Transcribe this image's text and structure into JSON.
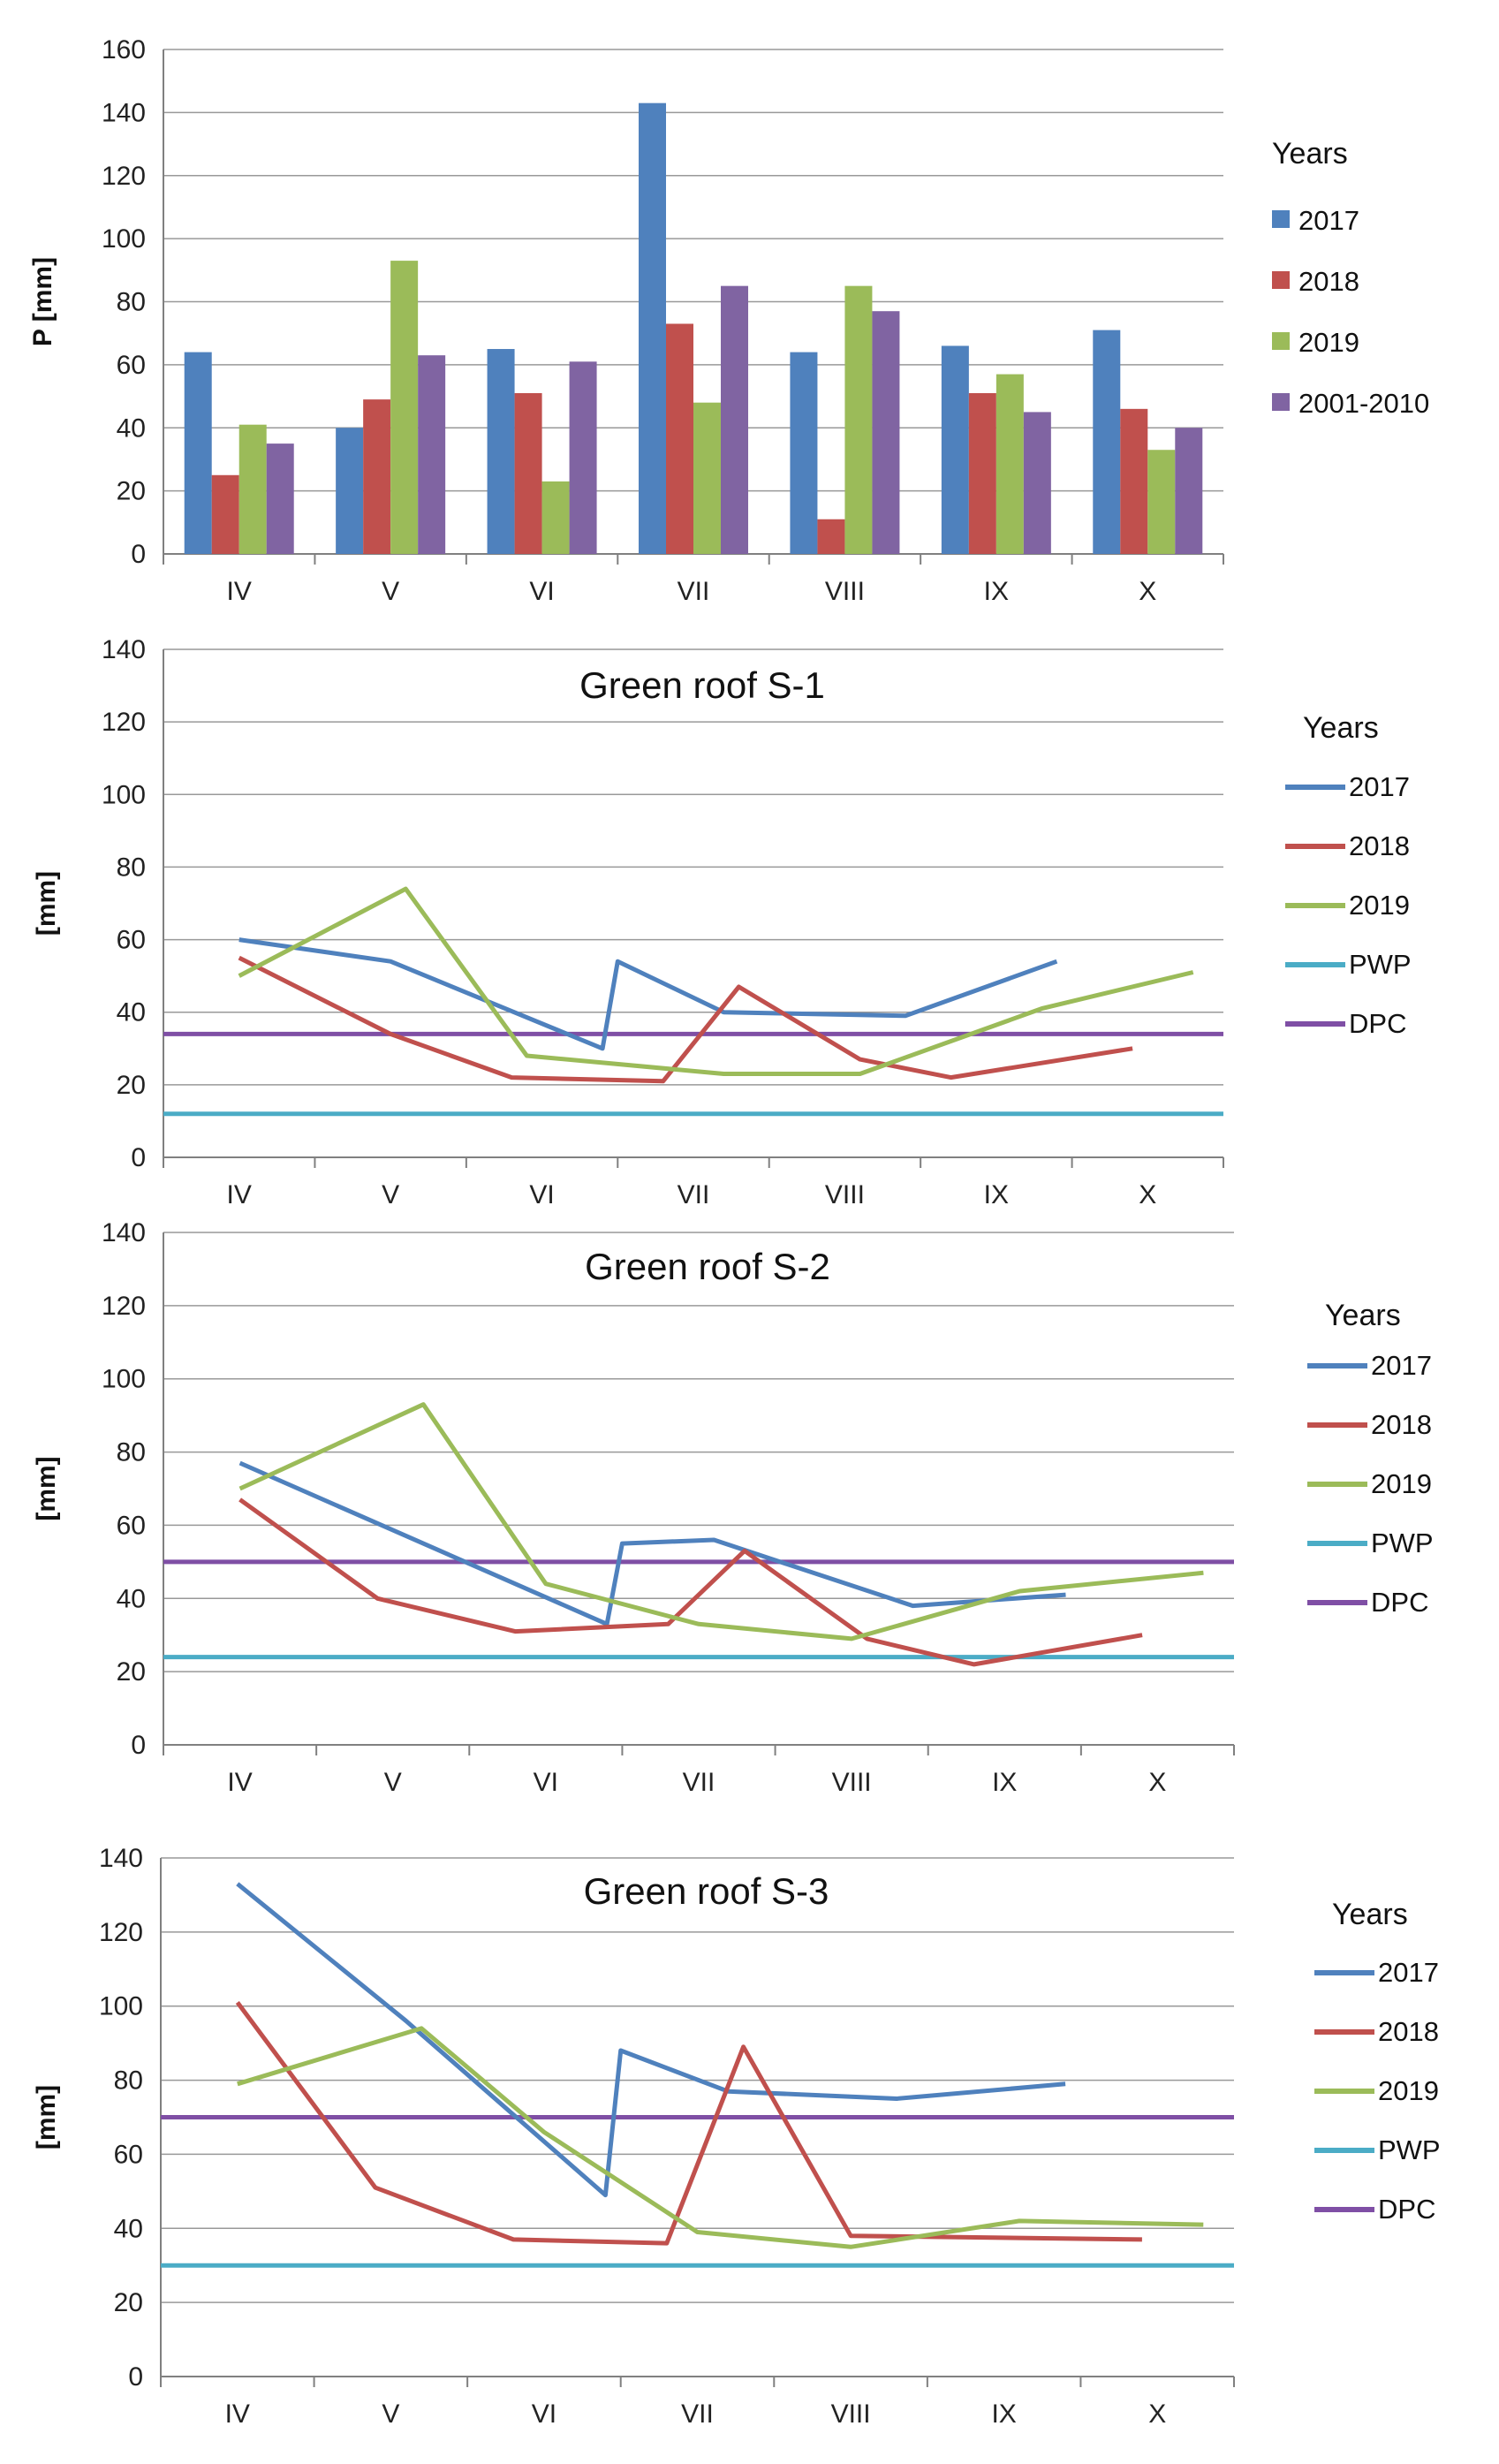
{
  "figure": {
    "colors": {
      "c2017": "#4f81bd",
      "c2018": "#c0504d",
      "c2019": "#9bbb59",
      "c2001_2010": "#8064a2",
      "PWP": "#4bacc6",
      "DPC": "#7f4fa5",
      "grid": "#999999",
      "axis": "#808080"
    }
  },
  "chart_data": [
    {
      "type": "bar",
      "title": "",
      "xlabel": "",
      "ylabel": "P [mm]",
      "ylim": [
        0,
        160
      ],
      "yticks": [
        0,
        20,
        40,
        60,
        80,
        100,
        120,
        140,
        160
      ],
      "categories": [
        "IV",
        "V",
        "VI",
        "VII",
        "VIII",
        "IX",
        "X"
      ],
      "legend_title": "Years",
      "legend_position": "right",
      "series": [
        {
          "name": "2017",
          "color_key": "c2017",
          "values": [
            64,
            40,
            65,
            143,
            64,
            66,
            71
          ]
        },
        {
          "name": "2018",
          "color_key": "c2018",
          "values": [
            25,
            49,
            51,
            73,
            11,
            51,
            46
          ]
        },
        {
          "name": "2019",
          "color_key": "c2019",
          "values": [
            41,
            93,
            23,
            48,
            85,
            57,
            33
          ]
        },
        {
          "name": "2001-2010",
          "color_key": "c2001_2010",
          "values": [
            35,
            63,
            61,
            85,
            77,
            45,
            40
          ]
        }
      ]
    },
    {
      "type": "line",
      "title": "Green roof S-1",
      "xlabel": "",
      "ylabel": "[mm]",
      "ylim": [
        0,
        140
      ],
      "yticks": [
        0,
        20,
        40,
        60,
        80,
        100,
        120,
        140
      ],
      "categories": [
        "IV",
        "V",
        "VI",
        "VII",
        "VIII",
        "IX",
        "X"
      ],
      "legend_title": "Years",
      "legend_position": "right",
      "series": [
        {
          "name": "2017",
          "color_key": "c2017",
          "x": [
            0,
            1,
            2.4,
            2.5,
            3.2,
            4.4,
            5.4
          ],
          "y": [
            60,
            54,
            30,
            54,
            40,
            39,
            54
          ]
        },
        {
          "name": "2018",
          "color_key": "c2018",
          "x": [
            0,
            1,
            1.8,
            2.8,
            3.3,
            4.1,
            4.7,
            5.9
          ],
          "y": [
            55,
            34,
            22,
            21,
            47,
            27,
            22,
            30
          ]
        },
        {
          "name": "2019",
          "color_key": "c2019",
          "x": [
            0,
            1.1,
            1.9,
            3.2,
            4.1,
            5.3,
            6.3
          ],
          "y": [
            50,
            74,
            28,
            23,
            23,
            41,
            51
          ]
        },
        {
          "name": "PWP",
          "color_key": "PWP",
          "hline": 12
        },
        {
          "name": "DPC",
          "color_key": "DPC",
          "hline": 34
        }
      ]
    },
    {
      "type": "line",
      "title": "Green roof S-2",
      "xlabel": "",
      "ylabel": "[mm]",
      "ylim": [
        0,
        140
      ],
      "yticks": [
        0,
        20,
        40,
        60,
        80,
        100,
        120,
        140
      ],
      "categories": [
        "IV",
        "V",
        "VI",
        "VII",
        "VIII",
        "IX",
        "X"
      ],
      "legend_title": "Years",
      "legend_position": "right",
      "series": [
        {
          "name": "2017",
          "color_key": "c2017",
          "x": [
            0,
            2.4,
            2.5,
            3.1,
            4.4,
            5.4
          ],
          "y": [
            77,
            33,
            55,
            56,
            38,
            41
          ]
        },
        {
          "name": "2018",
          "color_key": "c2018",
          "x": [
            0,
            0.9,
            1.8,
            2.8,
            3.3,
            4.1,
            4.8,
            5.9
          ],
          "y": [
            67,
            40,
            31,
            33,
            53,
            29,
            22,
            30
          ]
        },
        {
          "name": "2019",
          "color_key": "c2019",
          "x": [
            0,
            1.2,
            2.0,
            3.0,
            4.0,
            5.1,
            6.3
          ],
          "y": [
            70,
            93,
            44,
            33,
            29,
            42,
            47
          ]
        },
        {
          "name": "PWP",
          "color_key": "PWP",
          "hline": 24
        },
        {
          "name": "DPC",
          "color_key": "DPC",
          "hline": 50
        }
      ]
    },
    {
      "type": "line",
      "title": "Green roof S-3",
      "xlabel": "",
      "ylabel": "[mm]",
      "ylim": [
        0,
        140
      ],
      "yticks": [
        0,
        20,
        40,
        60,
        80,
        100,
        120,
        140
      ],
      "categories": [
        "IV",
        "V",
        "VI",
        "VII",
        "VIII",
        "IX",
        "X"
      ],
      "legend_title": "Years",
      "legend_position": "right",
      "series": [
        {
          "name": "2017",
          "color_key": "c2017",
          "x": [
            0,
            1.1,
            2.4,
            2.5,
            3.2,
            4.3,
            5.4
          ],
          "y": [
            133,
            96,
            49,
            88,
            77,
            75,
            79
          ]
        },
        {
          "name": "2018",
          "color_key": "c2018",
          "x": [
            0,
            0.9,
            1.8,
            2.8,
            3.3,
            4.0,
            5.9
          ],
          "y": [
            101,
            51,
            37,
            36,
            89,
            38,
            37
          ]
        },
        {
          "name": "2019",
          "color_key": "c2019",
          "x": [
            0,
            1.2,
            2.0,
            3.0,
            4.0,
            5.1,
            6.3
          ],
          "y": [
            79,
            94,
            66,
            39,
            35,
            42,
            41
          ]
        },
        {
          "name": "PWP",
          "color_key": "PWP",
          "hline": 30
        },
        {
          "name": "DPC",
          "color_key": "DPC",
          "hline": 70
        }
      ]
    }
  ]
}
